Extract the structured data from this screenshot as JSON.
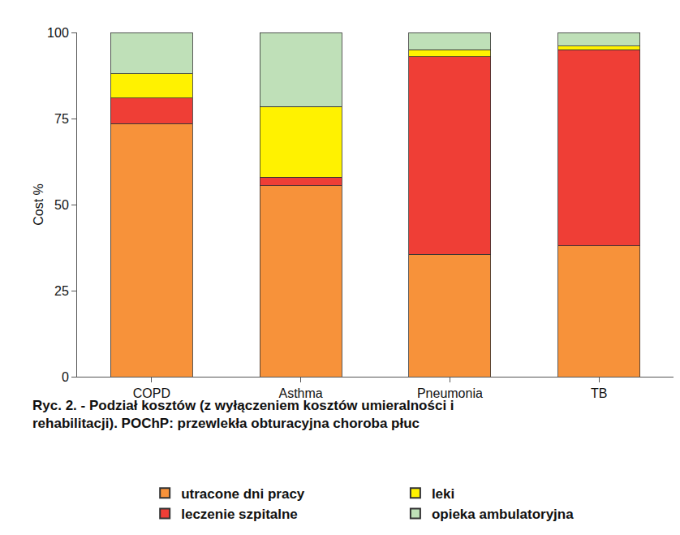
{
  "chart_data": {
    "type": "bar",
    "stacked": true,
    "title": "Ryc. 2. - Podział kosztów (z wyłączeniem kosztów umieralności i\nrehabilitacji). POChP: przewlekła obturacyjna choroba płuc",
    "y_label": "Cost %",
    "categories": [
      "COPD",
      "Asthma",
      "Pneumonia",
      "TB"
    ],
    "series": [
      {
        "name": "utracone dni pracy",
        "color": "#f7923a",
        "values": [
          73.5,
          55.5,
          35.5,
          38
        ]
      },
      {
        "name": "leczenie szpitalne",
        "color": "#ef3e36",
        "values": [
          7.5,
          2.5,
          57.5,
          57
        ]
      },
      {
        "name": "leki",
        "color": "#fff200",
        "values": [
          7,
          20.5,
          2,
          1
        ]
      },
      {
        "name": "opieka ambulatoryjna",
        "color": "#bfe0b8",
        "values": [
          12,
          21.5,
          5,
          4
        ]
      }
    ],
    "ylim": [
      0,
      100
    ],
    "yticks": [
      0,
      25,
      50,
      75,
      100
    ],
    "grid": false,
    "legend": "bottom"
  }
}
